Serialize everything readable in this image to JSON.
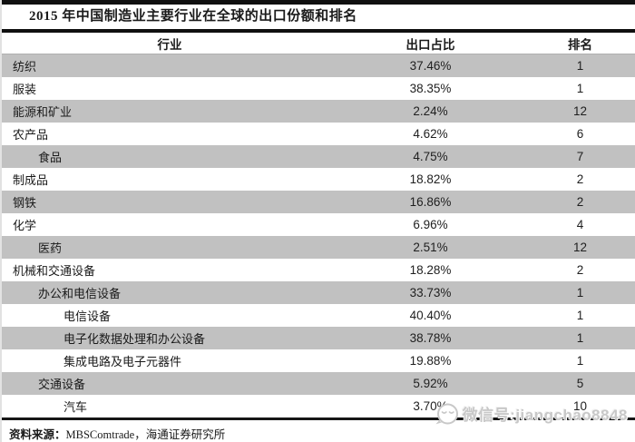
{
  "title": "2015 年中国制造业主要行业在全球的出口份额和排名",
  "table": {
    "headers": [
      "行业",
      "出口占比",
      "排名"
    ],
    "rows": [
      {
        "industry": "纺织",
        "indent": 0,
        "share": "37.46%",
        "rank": "1"
      },
      {
        "industry": "服装",
        "indent": 0,
        "share": "38.35%",
        "rank": "1"
      },
      {
        "industry": "能源和矿业",
        "indent": 0,
        "share": "2.24%",
        "rank": "12"
      },
      {
        "industry": "农产品",
        "indent": 0,
        "share": "4.62%",
        "rank": "6"
      },
      {
        "industry": "食品",
        "indent": 1,
        "share": "4.75%",
        "rank": "7"
      },
      {
        "industry": "制成品",
        "indent": 0,
        "share": "18.82%",
        "rank": "2"
      },
      {
        "industry": "钢铁",
        "indent": 0,
        "share": "16.86%",
        "rank": "2"
      },
      {
        "industry": "化学",
        "indent": 0,
        "share": "6.96%",
        "rank": "4"
      },
      {
        "industry": "医药",
        "indent": 1,
        "share": "2.51%",
        "rank": "12"
      },
      {
        "industry": "机械和交通设备",
        "indent": 0,
        "share": "18.28%",
        "rank": "2"
      },
      {
        "industry": "办公和电信设备",
        "indent": 1,
        "share": "33.73%",
        "rank": "1"
      },
      {
        "industry": "电信设备",
        "indent": 2,
        "share": "40.40%",
        "rank": "1"
      },
      {
        "industry": "电子化数据处理和办公设备",
        "indent": 2,
        "share": "38.78%",
        "rank": "1"
      },
      {
        "industry": "集成电路及电子元器件",
        "indent": 2,
        "share": "19.88%",
        "rank": "1"
      },
      {
        "industry": "交通设备",
        "indent": 1,
        "share": "5.92%",
        "rank": "5"
      },
      {
        "industry": "汽车",
        "indent": 2,
        "share": "3.70%",
        "rank": "10"
      }
    ]
  },
  "footer": {
    "source_label": "资料来源：",
    "source_text": "MBSComtrade，海通证券研究所"
  },
  "watermark": {
    "icon": "wechat-face-icon",
    "text": "微信号:jiangchao8848"
  },
  "colors": {
    "row_alt_gray": "#c1c1c1",
    "rule_black": "#101010",
    "watermark_gray": "#c8c8c8"
  },
  "chart_data": {
    "type": "table",
    "title": "2015 年中国制造业主要行业在全球的出口份额和排名",
    "columns": [
      "行业",
      "出口占比",
      "排名"
    ],
    "rows": [
      [
        "纺织",
        "37.46%",
        1
      ],
      [
        "服装",
        "38.35%",
        1
      ],
      [
        "能源和矿业",
        "2.24%",
        12
      ],
      [
        "农产品",
        "4.62%",
        6
      ],
      [
        "食品",
        "4.75%",
        7
      ],
      [
        "制成品",
        "18.82%",
        2
      ],
      [
        "钢铁",
        "16.86%",
        2
      ],
      [
        "化学",
        "6.96%",
        4
      ],
      [
        "医药",
        "2.51%",
        12
      ],
      [
        "机械和交通设备",
        "18.28%",
        2
      ],
      [
        "办公和电信设备",
        "33.73%",
        1
      ],
      [
        "电信设备",
        "40.40%",
        1
      ],
      [
        "电子化数据处理和办公设备",
        "38.78%",
        1
      ],
      [
        "集成电路及电子元器件",
        "19.88%",
        1
      ],
      [
        "交通设备",
        "5.92%",
        5
      ],
      [
        "汽车",
        "3.70%",
        10
      ]
    ]
  }
}
